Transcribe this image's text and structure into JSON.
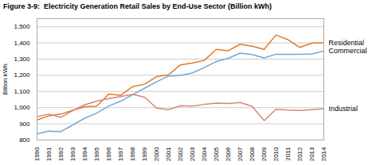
{
  "chart_data": {
    "type": "line",
    "title": "Figure 3-9:  Electricity Generation Retail Sales by End-Use Sector (Billion kWh)",
    "ylabel": "Billion kWh",
    "x": [
      1990,
      1991,
      1992,
      1993,
      1994,
      1995,
      1996,
      1997,
      1998,
      1999,
      2000,
      2001,
      2002,
      2003,
      2004,
      2005,
      2006,
      2007,
      2008,
      2009,
      2010,
      2011,
      2012,
      2013,
      2014
    ],
    "series": [
      {
        "name": "Residential",
        "color": "#E87722",
        "values": [
          924,
          950,
          960,
          984,
          1006,
          1010,
          1084,
          1076,
          1130,
          1145,
          1192,
          1202,
          1265,
          1276,
          1292,
          1360,
          1352,
          1392,
          1380,
          1360,
          1449,
          1420,
          1372,
          1399,
          1401
        ]
      },
      {
        "name": "Commercial",
        "color": "#6EA8D5",
        "values": [
          838,
          855,
          852,
          893,
          935,
          966,
          1010,
          1040,
          1080,
          1120,
          1160,
          1195,
          1200,
          1214,
          1248,
          1285,
          1305,
          1337,
          1328,
          1307,
          1330,
          1330,
          1330,
          1332,
          1350
        ]
      },
      {
        "name": "Industrial",
        "color": "#D4877A",
        "values": [
          945,
          960,
          940,
          982,
          1018,
          1040,
          1056,
          1068,
          1082,
          1065,
          997,
          987,
          1012,
          1010,
          1020,
          1028,
          1025,
          1032,
          1008,
          920,
          990,
          985,
          983,
          988,
          992
        ]
      }
    ],
    "xlim": [
      1990,
      2014
    ],
    "xticks": [
      1990,
      1991,
      1992,
      1993,
      1994,
      1995,
      1996,
      1997,
      1998,
      1999,
      2000,
      2001,
      2002,
      2003,
      2004,
      2005,
      2006,
      2007,
      2008,
      2009,
      2010,
      2011,
      2012,
      2013,
      2014
    ],
    "ylim": [
      800,
      1550
    ],
    "yticks": [
      800,
      900,
      {
        "value": 1000,
        "label": "1,000"
      },
      {
        "value": 1100,
        "label": "1,100"
      },
      {
        "value": 1200,
        "label": "1,200"
      },
      {
        "value": 1300,
        "label": "1,300"
      },
      {
        "value": 1400,
        "label": "1,400"
      },
      {
        "value": 1500,
        "label": "1,500"
      }
    ],
    "grid": true
  }
}
